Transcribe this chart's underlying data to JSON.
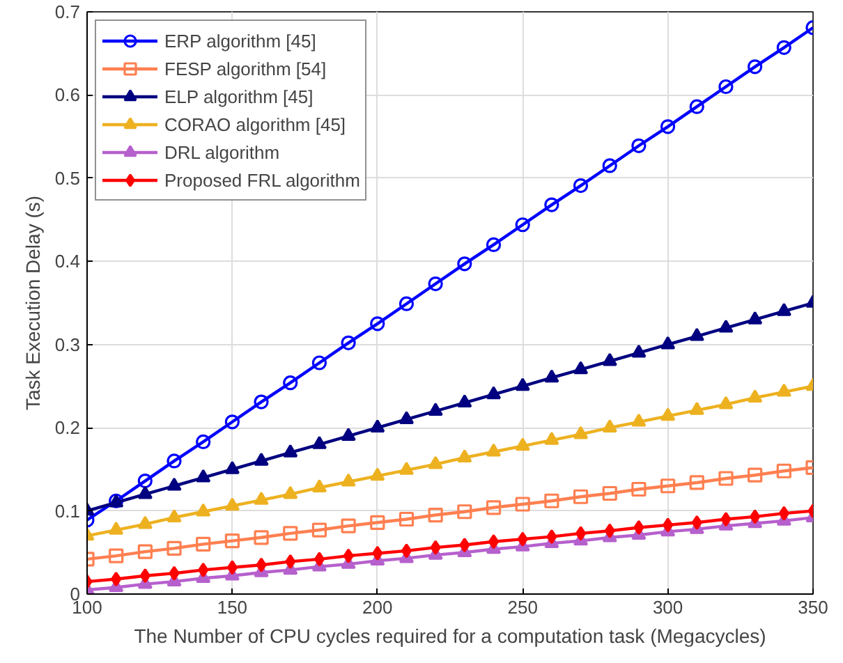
{
  "chart_data": {
    "type": "line",
    "xlabel": "The Number of CPU cycles required for a computation task (Megacycles)",
    "ylabel": "Task Execution Delay (s)",
    "x": [
      100,
      110,
      120,
      130,
      140,
      150,
      160,
      170,
      180,
      190,
      200,
      210,
      220,
      230,
      240,
      250,
      260,
      270,
      280,
      290,
      300,
      310,
      320,
      330,
      340,
      350
    ],
    "series": [
      {
        "name": "ERP algorithm [45]",
        "color": "#0000ff",
        "marker": "circle",
        "values": [
          0.089,
          0.112,
          0.136,
          0.16,
          0.183,
          0.207,
          0.231,
          0.254,
          0.278,
          0.302,
          0.325,
          0.349,
          0.373,
          0.397,
          0.42,
          0.444,
          0.468,
          0.491,
          0.515,
          0.539,
          0.562,
          0.586,
          0.61,
          0.634,
          0.657,
          0.681
        ]
      },
      {
        "name": "FESP algorithm [54]",
        "color": "#ff7f50",
        "marker": "square",
        "values": [
          0.042,
          0.046,
          0.051,
          0.055,
          0.06,
          0.064,
          0.068,
          0.073,
          0.077,
          0.082,
          0.086,
          0.09,
          0.095,
          0.099,
          0.104,
          0.108,
          0.112,
          0.117,
          0.121,
          0.126,
          0.13,
          0.134,
          0.139,
          0.143,
          0.148,
          0.152
        ]
      },
      {
        "name": "ELP algorithm [45]",
        "color": "#000080",
        "marker": "triangle",
        "values": [
          0.1,
          0.11,
          0.12,
          0.13,
          0.14,
          0.15,
          0.16,
          0.17,
          0.18,
          0.19,
          0.2,
          0.21,
          0.22,
          0.23,
          0.24,
          0.25,
          0.26,
          0.27,
          0.28,
          0.29,
          0.3,
          0.31,
          0.32,
          0.33,
          0.34,
          0.35
        ]
      },
      {
        "name": "CORAO algorithm [45]",
        "color": "#edb120",
        "marker": "triangle",
        "values": [
          0.07,
          0.077,
          0.084,
          0.092,
          0.099,
          0.106,
          0.113,
          0.12,
          0.128,
          0.135,
          0.142,
          0.149,
          0.156,
          0.164,
          0.171,
          0.178,
          0.185,
          0.192,
          0.2,
          0.207,
          0.214,
          0.221,
          0.228,
          0.236,
          0.243,
          0.25
        ]
      },
      {
        "name": "DRL algorithm",
        "color": "#b660cd",
        "marker": "triangle",
        "values": [
          0.005,
          0.008,
          0.012,
          0.015,
          0.019,
          0.022,
          0.026,
          0.029,
          0.033,
          0.036,
          0.04,
          0.043,
          0.047,
          0.05,
          0.054,
          0.057,
          0.061,
          0.064,
          0.068,
          0.071,
          0.075,
          0.078,
          0.082,
          0.085,
          0.088,
          0.092
        ]
      },
      {
        "name": "Proposed FRL algorithm",
        "color": "#ff0000",
        "marker": "diamond",
        "values": [
          0.015,
          0.018,
          0.022,
          0.025,
          0.029,
          0.032,
          0.035,
          0.039,
          0.042,
          0.046,
          0.049,
          0.052,
          0.056,
          0.059,
          0.063,
          0.066,
          0.069,
          0.073,
          0.076,
          0.08,
          0.083,
          0.086,
          0.09,
          0.093,
          0.097,
          0.1
        ]
      }
    ],
    "xlim": [
      100,
      350
    ],
    "xticks": [
      100,
      150,
      200,
      250,
      300,
      350
    ],
    "ylim": [
      0,
      0.7
    ],
    "yticks": [
      0,
      0.1,
      0.2,
      0.3,
      0.4,
      0.5,
      0.6,
      0.7
    ],
    "grid": true,
    "legend": "top left",
    "line_style": "solid"
  }
}
